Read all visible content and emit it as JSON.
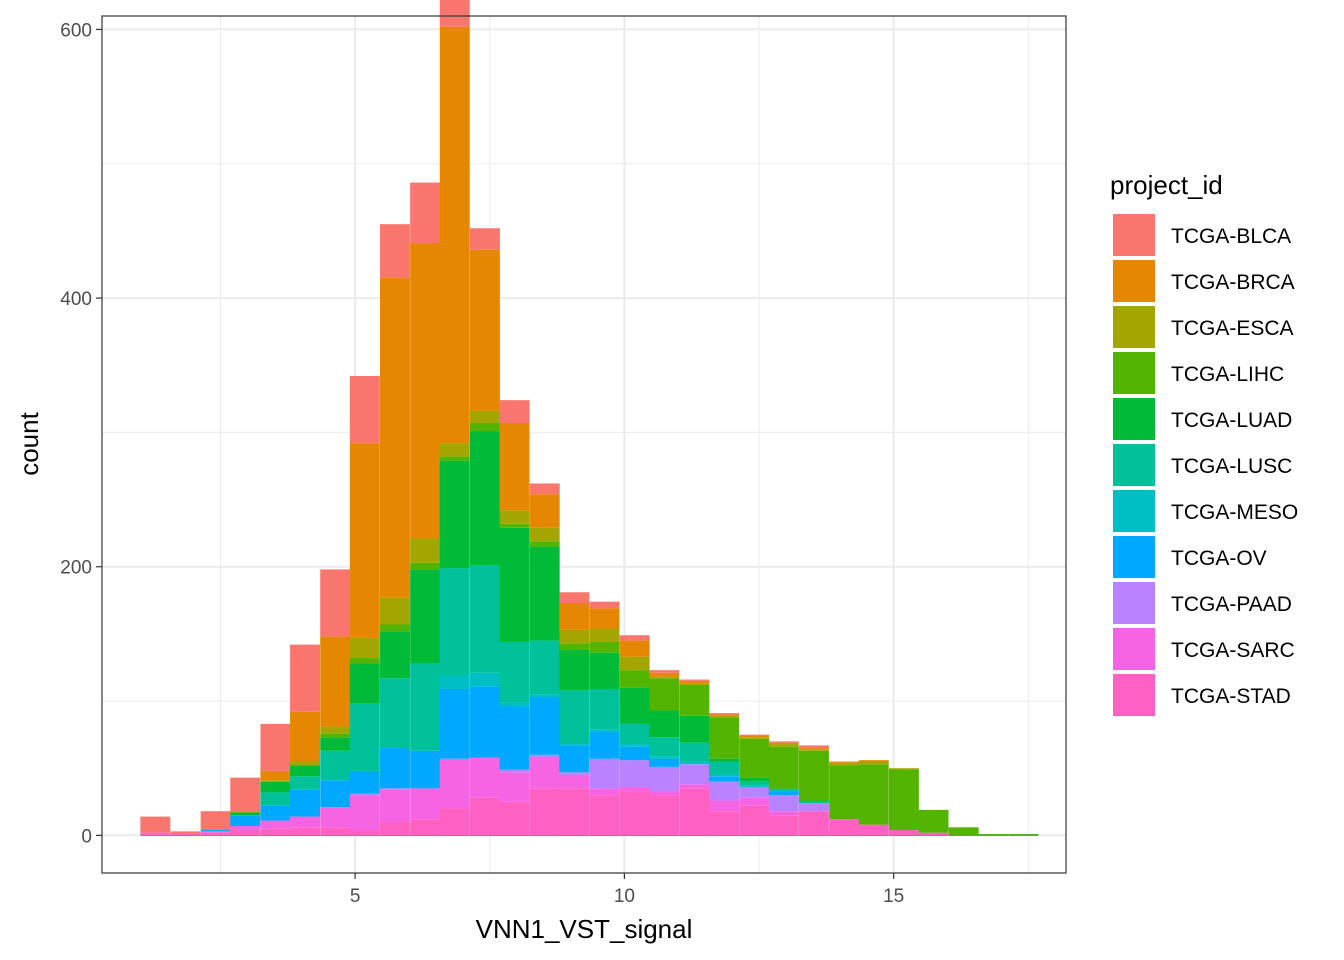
{
  "chart_data": {
    "type": "bar",
    "subtype": "stacked-histogram",
    "title": "",
    "xlabel": "VNN1_VST_signal",
    "ylabel": "count",
    "xlim": [
      0.3,
      18.2
    ],
    "ylim": [
      -28,
      610
    ],
    "xticks": [
      5,
      10,
      15
    ],
    "yticks": [
      0,
      200,
      400,
      600
    ],
    "xgrid_minor": [
      2.5,
      7.5,
      12.5,
      17.5
    ],
    "ygrid_minor": [
      100,
      300,
      500
    ],
    "legend_title": "project_id",
    "legend_position": "right",
    "bin_width": 0.556,
    "bin_centers": [
      1.29,
      1.85,
      2.41,
      2.96,
      3.52,
      4.07,
      4.63,
      5.18,
      5.74,
      6.3,
      6.85,
      7.41,
      7.96,
      8.52,
      9.07,
      9.63,
      10.19,
      10.74,
      11.3,
      11.85,
      12.41,
      12.96,
      13.52,
      14.08,
      14.63,
      15.19,
      15.74,
      16.3,
      16.85,
      17.41
    ],
    "series": [
      {
        "name": "TCGA-STAD",
        "color": "#FF61C3",
        "values": [
          1,
          1,
          2,
          4,
          5,
          6,
          6,
          4,
          10,
          12,
          20,
          28,
          25,
          35,
          35,
          30,
          33,
          30,
          35,
          18,
          22,
          15,
          18,
          12,
          8,
          4,
          2,
          0,
          0,
          0
        ]
      },
      {
        "name": "TCGA-SARC",
        "color": "#F564E3",
        "values": [
          1,
          0,
          1,
          3,
          6,
          8,
          15,
          26,
          24,
          23,
          37,
          30,
          22,
          23,
          10,
          5,
          3,
          3,
          3,
          8,
          6,
          3,
          0,
          0,
          0,
          0,
          0,
          0,
          0,
          0
        ]
      },
      {
        "name": "TCGA-PAAD",
        "color": "#B983FF",
        "values": [
          0,
          0,
          0,
          0,
          0,
          0,
          0,
          1,
          1,
          0,
          0,
          0,
          2,
          2,
          2,
          22,
          20,
          18,
          15,
          14,
          8,
          12,
          6,
          0,
          0,
          0,
          0,
          0,
          0,
          0
        ]
      },
      {
        "name": "TCGA-OV",
        "color": "#00A9FF",
        "values": [
          0,
          0,
          1,
          8,
          11,
          20,
          20,
          17,
          30,
          28,
          52,
          53,
          47,
          43,
          20,
          20,
          10,
          6,
          0,
          4,
          0,
          3,
          0,
          0,
          0,
          0,
          0,
          0,
          0,
          0
        ]
      },
      {
        "name": "TCGA-MESO",
        "color": "#00BFC4",
        "values": [
          0,
          0,
          0,
          0,
          0,
          0,
          0,
          0,
          0,
          0,
          10,
          10,
          3,
          2,
          1,
          2,
          2,
          2,
          2,
          1,
          1,
          1,
          0,
          0,
          0,
          0,
          0,
          0,
          0,
          0
        ]
      },
      {
        "name": "TCGA-LUSC",
        "color": "#00C19A",
        "values": [
          0,
          0,
          0,
          0,
          10,
          10,
          22,
          50,
          52,
          65,
          80,
          80,
          45,
          40,
          40,
          30,
          15,
          14,
          14,
          10,
          3,
          0,
          1,
          0,
          0,
          0,
          0,
          0,
          0,
          0
        ]
      },
      {
        "name": "TCGA-LUAD",
        "color": "#00BA38",
        "values": [
          0,
          0,
          0,
          2,
          8,
          8,
          10,
          30,
          35,
          70,
          80,
          100,
          85,
          70,
          30,
          27,
          27,
          20,
          20,
          2,
          3,
          1,
          1,
          0,
          0,
          0,
          0,
          0,
          0,
          0
        ]
      },
      {
        "name": "TCGA-LIHC",
        "color": "#53B400",
        "values": [
          0,
          0,
          0,
          0,
          0,
          0,
          3,
          4,
          5,
          5,
          3,
          6,
          3,
          4,
          5,
          8,
          13,
          24,
          23,
          31,
          29,
          31,
          37,
          40,
          45,
          45,
          17,
          6,
          1,
          1
        ]
      },
      {
        "name": "TCGA-ESCA",
        "color": "#A3A500",
        "values": [
          0,
          0,
          0,
          1,
          1,
          3,
          5,
          15,
          20,
          18,
          10,
          9,
          10,
          10,
          10,
          10,
          10,
          1,
          1,
          1,
          1,
          2,
          1,
          2,
          2,
          1,
          0,
          0,
          0,
          0
        ]
      },
      {
        "name": "TCGA-BRCA",
        "color": "#E58700",
        "values": [
          0,
          0,
          0,
          0,
          7,
          37,
          67,
          145,
          238,
          220,
          310,
          120,
          65,
          25,
          20,
          15,
          12,
          3,
          2,
          1,
          1,
          1,
          1,
          1,
          1,
          0,
          0,
          0,
          0,
          0
        ]
      },
      {
        "name": "TCGA-BLCA",
        "color": "#F8766D",
        "values": [
          12,
          2,
          14,
          25,
          35,
          50,
          50,
          50,
          40,
          45,
          37,
          16,
          17,
          8,
          8,
          5,
          4,
          2,
          1,
          1,
          1,
          1,
          2,
          0,
          0,
          0,
          0,
          0,
          0,
          0
        ]
      }
    ]
  }
}
